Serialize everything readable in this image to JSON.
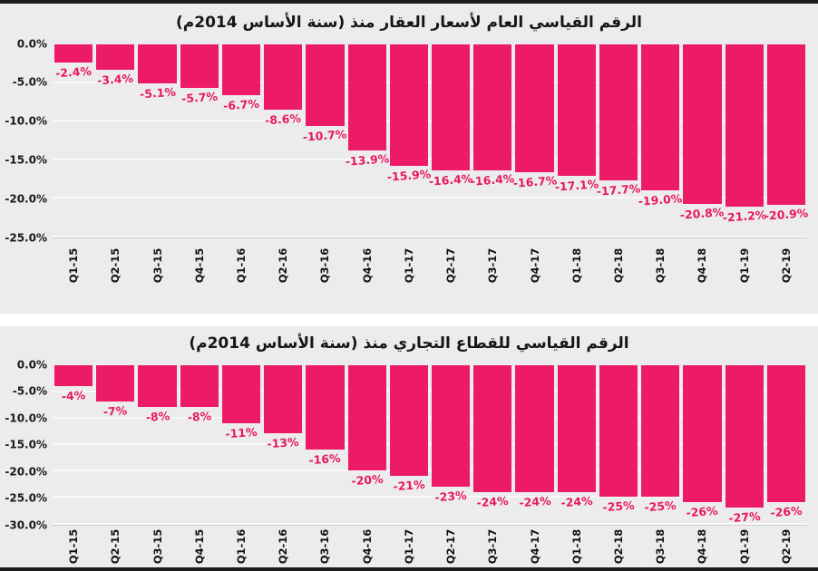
{
  "page": {
    "background": "#ffffff",
    "frame_border_color": "#1c1c1e",
    "panel_background": "#ececee"
  },
  "chart_data": [
    {
      "type": "bar",
      "title": "الرقم القياسي العام لأسعار العقار منذ (سنة الأساس 2014م)",
      "categories": [
        "Q1-15",
        "Q2-15",
        "Q3-15",
        "Q4-15",
        "Q1-16",
        "Q2-16",
        "Q3-16",
        "Q4-16",
        "Q1-17",
        "Q2-17",
        "Q3-17",
        "Q4-17",
        "Q1-18",
        "Q2-18",
        "Q3-18",
        "Q4-18",
        "Q1-19",
        "Q2-19"
      ],
      "values": [
        -2.4,
        -3.4,
        -5.1,
        -5.7,
        -6.7,
        -8.6,
        -10.7,
        -13.9,
        -15.9,
        -16.4,
        -16.4,
        -16.7,
        -17.1,
        -17.7,
        -19.0,
        -20.8,
        -21.2,
        -20.9
      ],
      "value_labels": [
        "-2.4%",
        "-3.4%",
        "-5.1%",
        "-5.7%",
        "-6.7%",
        "-8.6%",
        "-10.7%",
        "-13.9%",
        "-15.9%",
        "-16.4%",
        "-16.4%",
        "-16.7%",
        "-17.1%",
        "-17.7%",
        "-19.0%",
        "-20.8%",
        "-21.2%",
        "-20.9%"
      ],
      "y_tick_labels": [
        "0.0%",
        "-5.0%",
        "-10.0%",
        "-15.0%",
        "-20.0%",
        "-25.0%"
      ],
      "y_tick_values": [
        0,
        -5,
        -10,
        -15,
        -20,
        -25
      ],
      "ylim": [
        0,
        -25
      ],
      "xlabel": "",
      "ylabel": "",
      "grid": true,
      "legend": "none",
      "bar_color": "#ed1a66",
      "label_color": "#e8185f"
    },
    {
      "type": "bar",
      "title": "الرقم القياسي للقطاع التجاري منذ (سنة الأساس 2014م)",
      "categories": [
        "Q1-15",
        "Q2-15",
        "Q3-15",
        "Q4-15",
        "Q1-16",
        "Q2-16",
        "Q3-16",
        "Q4-16",
        "Q1-17",
        "Q2-17",
        "Q3-17",
        "Q4-17",
        "Q1-18",
        "Q2-18",
        "Q3-18",
        "Q4-18",
        "Q1-19",
        "Q2-19"
      ],
      "values": [
        -4,
        -7,
        -8,
        -8,
        -11,
        -13,
        -16,
        -20,
        -21,
        -23,
        -24,
        -24,
        -24,
        -25,
        -25,
        -26,
        -27,
        -26
      ],
      "value_labels": [
        "-4%",
        "-7%",
        "-8%",
        "-8%",
        "-11%",
        "-13%",
        "-16%",
        "-20%",
        "-21%",
        "-23%",
        "-24%",
        "-24%",
        "-24%",
        "-25%",
        "-25%",
        "-26%",
        "-27%",
        "-26%"
      ],
      "y_tick_labels": [
        "0.0%",
        "-5.0%",
        "-10.0%",
        "-15.0%",
        "-20.0%",
        "-25.0%",
        "-30.0%"
      ],
      "y_tick_values": [
        0,
        -5,
        -10,
        -15,
        -20,
        -25,
        -30
      ],
      "ylim": [
        0,
        -30
      ],
      "xlabel": "",
      "ylabel": "",
      "grid": true,
      "legend": "none",
      "bar_color": "#ed1a66",
      "label_color": "#e8185f"
    }
  ]
}
